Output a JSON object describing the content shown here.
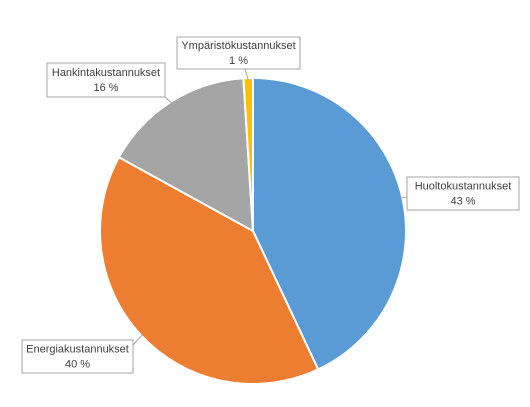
{
  "chart_data": {
    "type": "pie",
    "categories": [
      "Huoltokustannukset",
      "Energiakustannukset",
      "Hankintakustannukset",
      "Ympäristökustannukset"
    ],
    "values": [
      43,
      40,
      16,
      1
    ],
    "value_labels": [
      "43 %",
      "40 %",
      "16 %",
      "1 %"
    ],
    "colors": [
      "#5b9bd5",
      "#ed7d31",
      "#a5a5a5",
      "#ffc000"
    ]
  }
}
